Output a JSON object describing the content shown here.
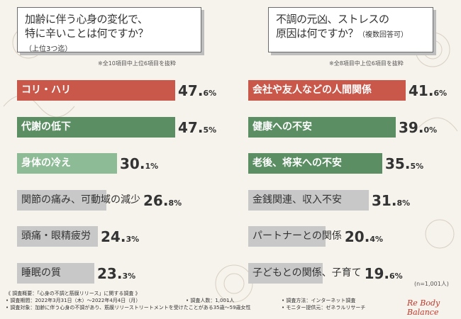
{
  "left_chart": {
    "question_line1": "加齢に伴う心身の変化で、",
    "question_line2": "特に辛いことは何ですか？",
    "question_sub": "（上位3つ迄）",
    "note": "※全10項目中上位6項目を抜粋"
  },
  "right_chart": {
    "question_line1": "不調の元凶、ストレスの",
    "question_line2": "原因は何ですか？",
    "question_sub": "（複数回答可）",
    "note": "※全8項目中上位6項目を抜粋",
    "sample_note": "(n=1,001人)"
  },
  "footer": {
    "title": "《 調査概要：「心身の不調と筋膜リリース」に関する調査 》",
    "period": "• 調査期間：2022年3月31日（木）～2022年4月4日（月）",
    "target": "• 調査対象：加齢に伴う心身の不調があり、筋膜リリーストリートメントを受けたことがある35歳～59歳女性",
    "count": "• 調査人数：1,001人",
    "method": "• 調査方法：インターネット調査",
    "provider": "• モニター提供元：ゼネラルリサーチ"
  },
  "brand": "Re Body Balance",
  "colors": {
    "top": "#c9574a",
    "green": "#5b8f63",
    "green_light": "#8dbb95",
    "gray": "#c8c8c8"
  },
  "chart_data": [
    {
      "type": "bar",
      "orientation": "horizontal",
      "title": "加齢に伴う心身の変化で、特に辛いことは何ですか？（上位3つ迄）",
      "unit": "%",
      "categories": [
        "コリ・ハリ",
        "代謝の低下",
        "身体の冷え",
        "関節の痛み、可動域の減少",
        "頭痛・眼精疲労",
        "睡眠の質"
      ],
      "values": [
        47.6,
        47.5,
        30.1,
        26.8,
        24.3,
        23.3
      ],
      "value_labels": [
        {
          "num": "47.",
          "dec": "6%"
        },
        {
          "num": "47.",
          "dec": "5%"
        },
        {
          "num": "30.",
          "dec": "1%"
        },
        {
          "num": "26.",
          "dec": "8%"
        },
        {
          "num": "24.",
          "dec": "3%"
        },
        {
          "num": "23.",
          "dec": "3%"
        }
      ],
      "xlim": [
        0,
        47.6
      ]
    },
    {
      "type": "bar",
      "orientation": "horizontal",
      "title": "不調の元凶、ストレスの原因は何ですか？（複数回答可）",
      "unit": "%",
      "categories": [
        "会社や友人などの人間関係",
        "健康への不安",
        "老後、将来への不安",
        "金銭関連、収入不安",
        "パートナーとの関係",
        "子どもとの関係、子育て"
      ],
      "values": [
        41.6,
        39.0,
        35.5,
        31.8,
        20.4,
        19.6
      ],
      "value_labels": [
        {
          "num": "41.",
          "dec": "6%"
        },
        {
          "num": "39.",
          "dec": "0%"
        },
        {
          "num": "35.",
          "dec": "5%"
        },
        {
          "num": "31.",
          "dec": "8%"
        },
        {
          "num": "20.",
          "dec": "4%"
        },
        {
          "num": "19.",
          "dec": "6%"
        }
      ],
      "xlim": [
        0,
        41.6
      ]
    }
  ]
}
